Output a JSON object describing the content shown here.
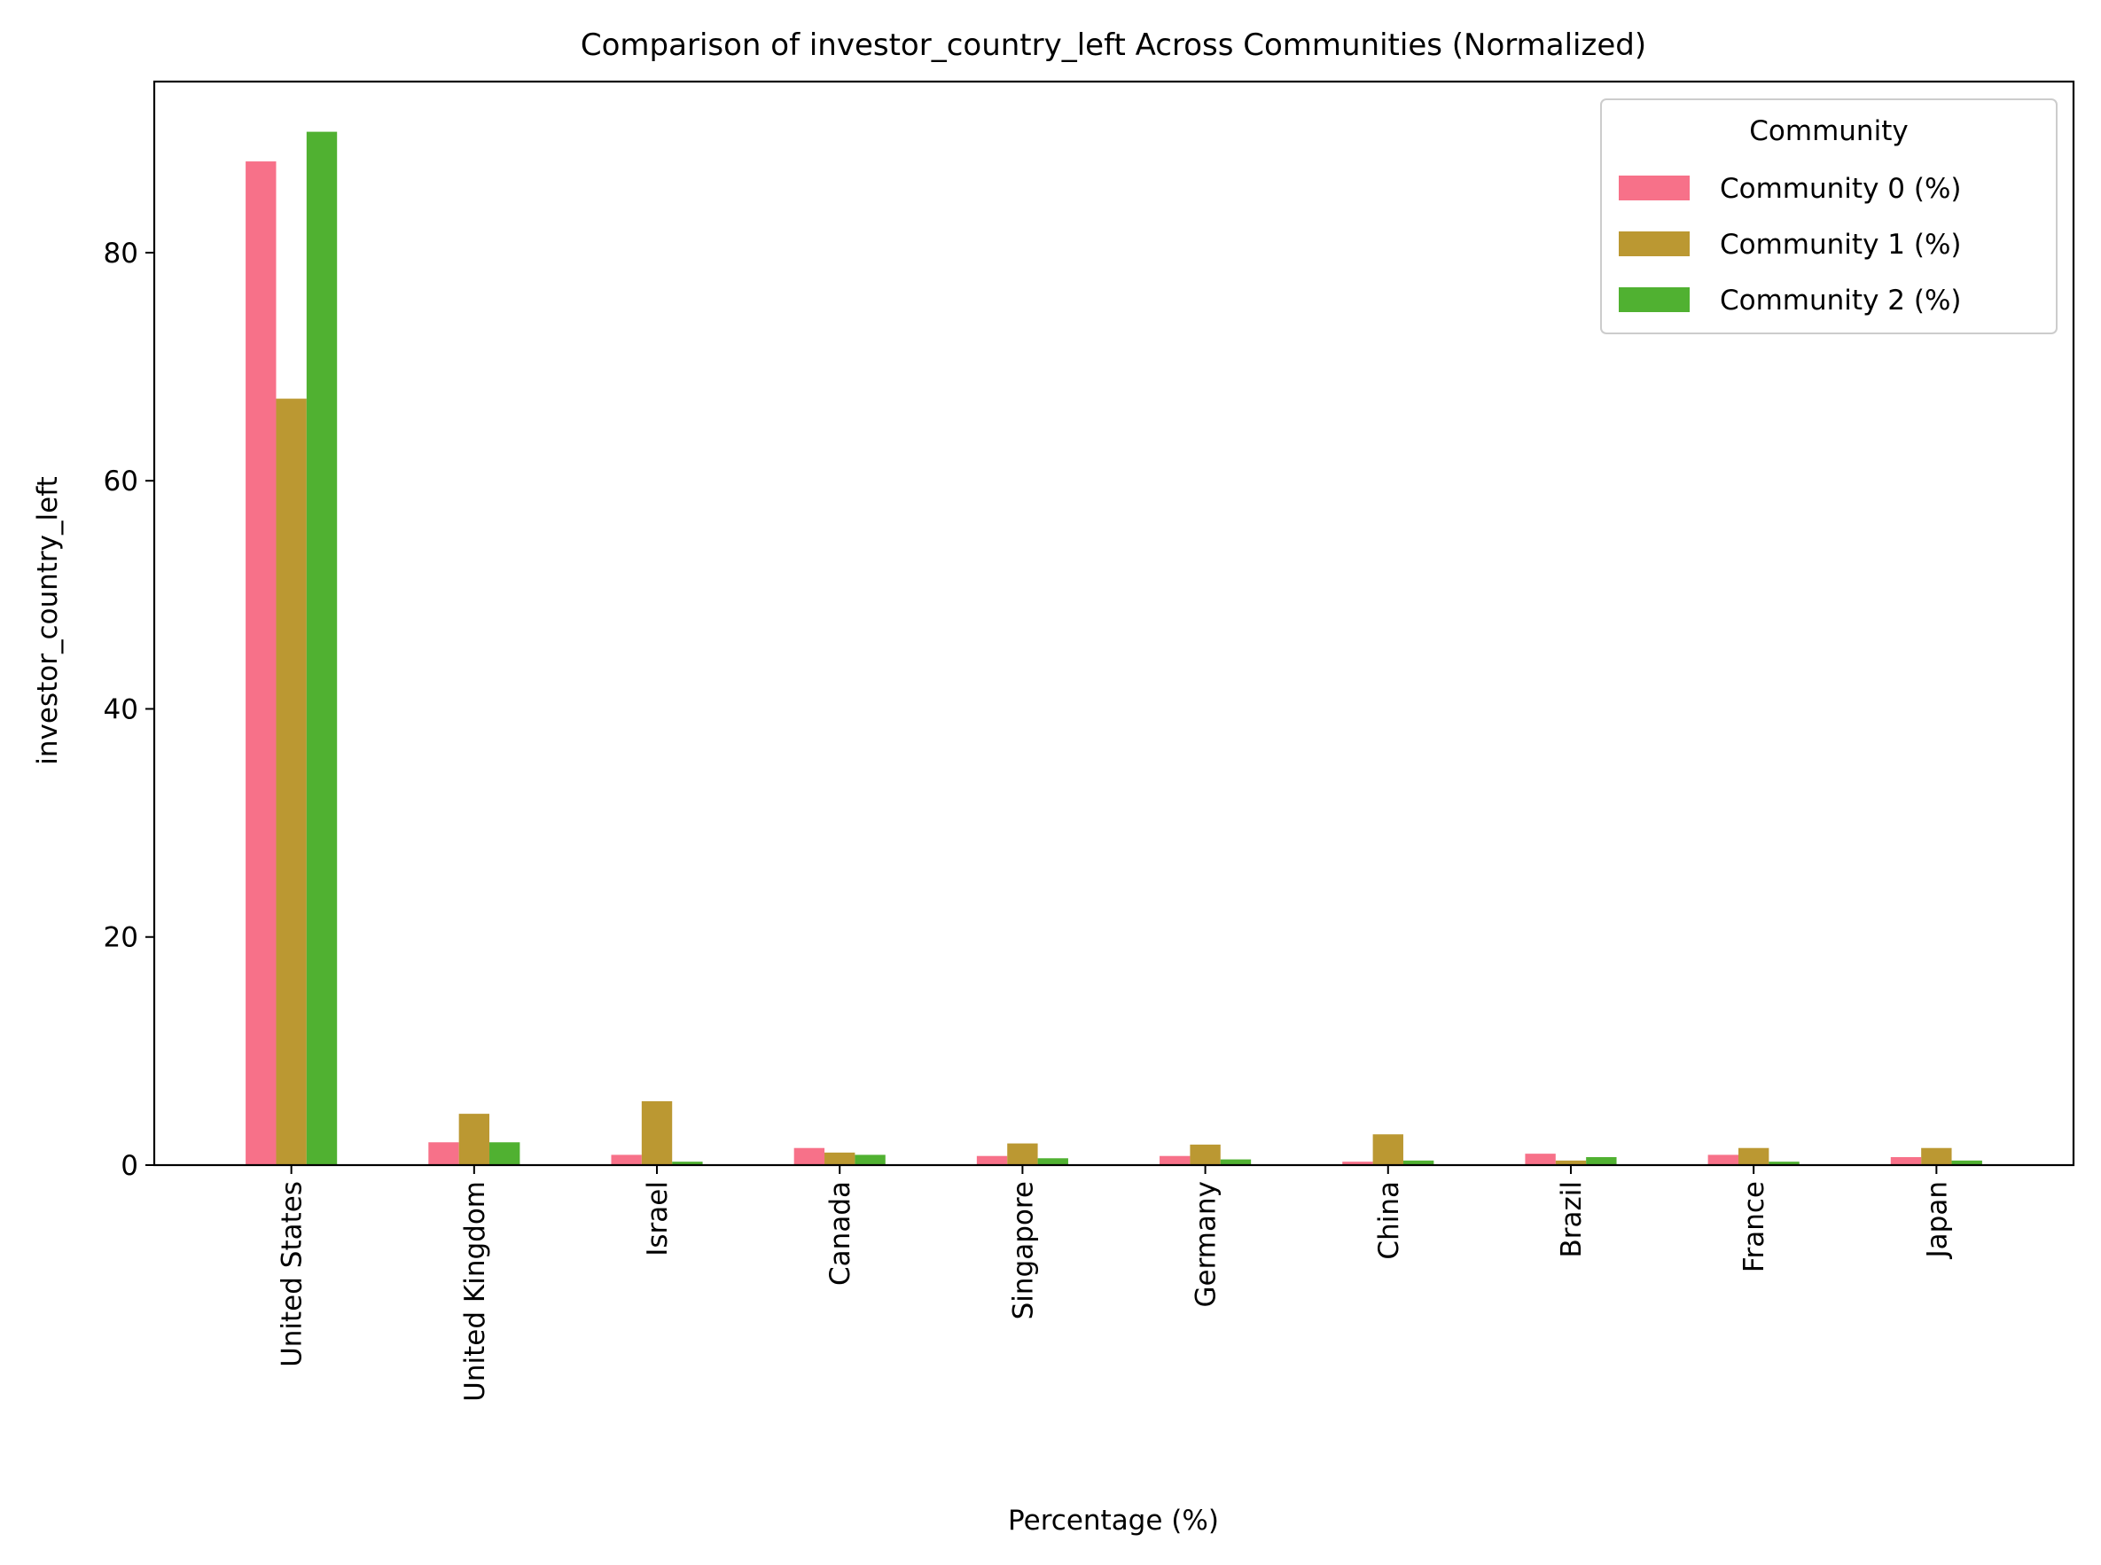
{
  "chart_data": {
    "type": "bar",
    "title": "Comparison of investor_country_left Across Communities (Normalized)",
    "xlabel": "Percentage (%)",
    "ylabel": "investor_country_left",
    "ylim": [
      0,
      95
    ],
    "yticks": [
      0,
      20,
      40,
      60,
      80
    ],
    "grid": false,
    "legend": {
      "title": "Community",
      "position": "top-right"
    },
    "categories": [
      "United States",
      "United Kingdom",
      "Israel",
      "Canada",
      "Singapore",
      "Germany",
      "China",
      "Brazil",
      "France",
      "Japan"
    ],
    "series": [
      {
        "name": "Community 0 (%)",
        "color": "#f77189",
        "values": [
          88.0,
          2.0,
          0.9,
          1.5,
          0.8,
          0.8,
          0.3,
          1.0,
          0.9,
          0.7
        ]
      },
      {
        "name": "Community 1 (%)",
        "color": "#bb9832",
        "values": [
          67.2,
          4.5,
          5.6,
          1.1,
          1.9,
          1.8,
          2.7,
          0.4,
          1.5,
          1.5
        ]
      },
      {
        "name": "Community 2 (%)",
        "color": "#50b131",
        "values": [
          90.6,
          2.0,
          0.3,
          0.9,
          0.6,
          0.5,
          0.4,
          0.7,
          0.3,
          0.4
        ]
      }
    ]
  }
}
